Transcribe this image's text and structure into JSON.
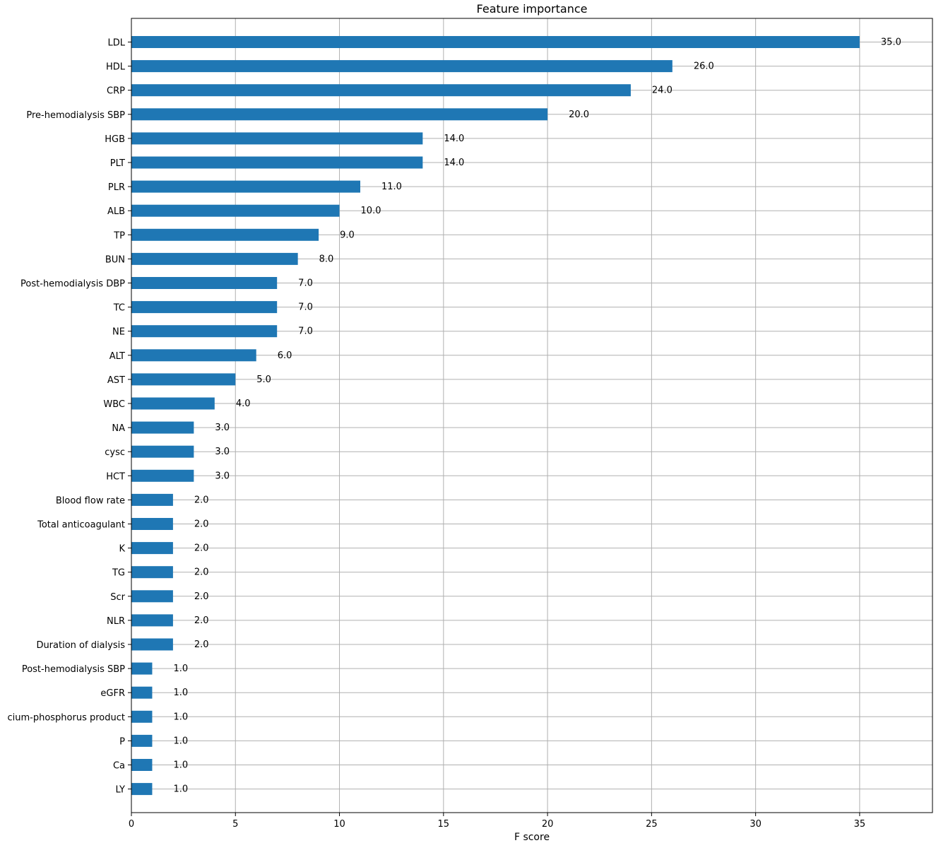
{
  "chart_data": {
    "type": "bar",
    "orientation": "horizontal",
    "title": "Feature importance",
    "xlabel": "F score",
    "ylabel": "",
    "xlim": [
      0,
      38.5
    ],
    "x_ticks": [
      0,
      5,
      10,
      15,
      20,
      25,
      30,
      35
    ],
    "grid": true,
    "bar_color": "#1f77b4",
    "categories": [
      "LDL",
      "HDL",
      "CRP",
      "Pre-hemodialysis SBP",
      "HGB",
      "PLT",
      "PLR",
      "ALB",
      "TP",
      "BUN",
      "Post-hemodialysis DBP",
      "TC",
      "NE",
      "ALT",
      "AST",
      "WBC",
      "NA",
      "cysc",
      "HCT",
      "Blood flow rate",
      "Total anticoagulant",
      "K",
      "TG",
      "Scr",
      "NLR",
      "Duration of dialysis",
      "Post-hemodialysis SBP",
      "eGFR",
      "cium-phosphorus product",
      "P",
      "Ca",
      "LY"
    ],
    "values": [
      35,
      26,
      24,
      20,
      14,
      14,
      11,
      10,
      9,
      8,
      7,
      7,
      7,
      6,
      5,
      4,
      3,
      3,
      3,
      2,
      2,
      2,
      2,
      2,
      2,
      2,
      1,
      1,
      1,
      1,
      1,
      1
    ],
    "value_labels": [
      "35.0",
      "26.0",
      "24.0",
      "20.0",
      "14.0",
      "14.0",
      "11.0",
      "10.0",
      "9.0",
      "8.0",
      "7.0",
      "7.0",
      "7.0",
      "6.0",
      "5.0",
      "4.0",
      "3.0",
      "3.0",
      "3.0",
      "2.0",
      "2.0",
      "2.0",
      "2.0",
      "2.0",
      "2.0",
      "2.0",
      "1.0",
      "1.0",
      "1.0",
      "1.0",
      "1.0",
      "1.0"
    ]
  }
}
